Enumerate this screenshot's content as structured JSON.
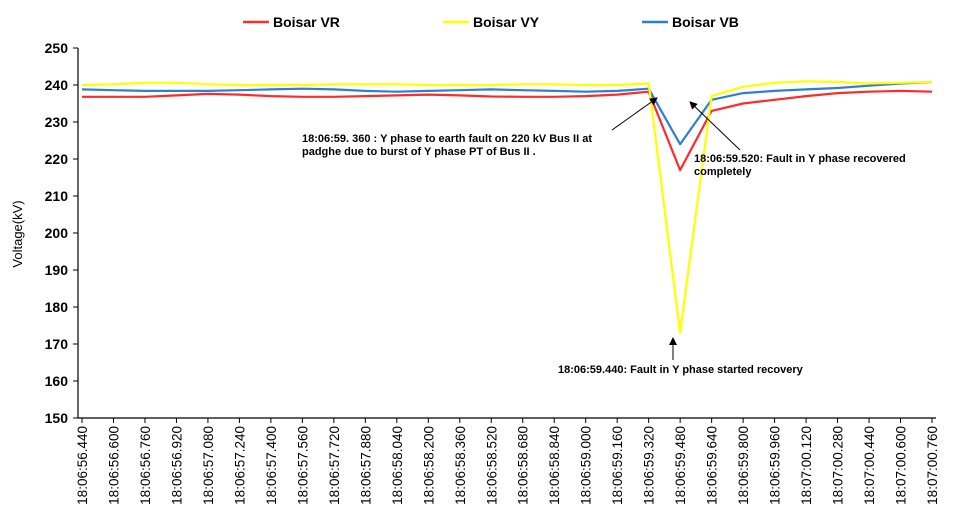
{
  "chart_data": {
    "type": "line",
    "title": "",
    "xlabel": "",
    "ylabel": "Voltage(kV)",
    "ylim": [
      150,
      250
    ],
    "yticks": [
      150,
      160,
      170,
      180,
      190,
      200,
      210,
      220,
      230,
      240,
      250
    ],
    "x": [
      "18:06:56.440",
      "18:06:56.600",
      "18:06:56.760",
      "18:06:56.920",
      "18:06:57.080",
      "18:06:57.240",
      "18:06:57.400",
      "18:06:57.560",
      "18:06:57.720",
      "18:06:57.880",
      "18:06:58.040",
      "18:06:58.200",
      "18:06:58.360",
      "18:06:58.520",
      "18:06:58.680",
      "18:06:58.840",
      "18:06:59.000",
      "18:06:59.160",
      "18:06:59.320",
      "18:06:59.480",
      "18:06:59.640",
      "18:06:59.800",
      "18:06:59.960",
      "18:07:00.120",
      "18:07:00.280",
      "18:07:00.440",
      "18:07:00.600",
      "18:07:00.760"
    ],
    "legend_position": "top",
    "grid": false,
    "series": [
      {
        "name": "Boisar VR",
        "color": "#ff2a2a",
        "values": [
          236.8,
          236.8,
          236.8,
          237.2,
          237.6,
          237.4,
          237.0,
          236.8,
          236.8,
          237.0,
          237.2,
          237.4,
          237.2,
          236.9,
          236.8,
          236.8,
          237.0,
          237.4,
          238.2,
          217.0,
          233.0,
          235.0,
          236.0,
          237.0,
          237.8,
          238.2,
          238.4,
          238.2
        ]
      },
      {
        "name": "Boisar VY",
        "color": "#ffff00",
        "values": [
          240.0,
          240.2,
          240.6,
          240.6,
          240.2,
          240.0,
          240.0,
          240.0,
          240.2,
          240.2,
          240.2,
          240.0,
          240.0,
          240.0,
          240.2,
          240.2,
          240.0,
          240.0,
          240.4,
          173.0,
          237.0,
          239.5,
          240.6,
          241.0,
          240.8,
          240.4,
          240.6,
          240.8
        ]
      },
      {
        "name": "Boisar VB",
        "color": "#2f7fd0",
        "values": [
          238.8,
          238.6,
          238.4,
          238.4,
          238.4,
          238.6,
          238.8,
          239.0,
          238.8,
          238.4,
          238.2,
          238.4,
          238.6,
          238.8,
          238.6,
          238.4,
          238.2,
          238.4,
          239.0,
          224.0,
          236.0,
          237.8,
          238.4,
          238.8,
          239.2,
          239.8,
          240.4,
          240.8
        ]
      }
    ],
    "annotations": [
      {
        "lines": [
          "18:06:59.  360  : Y phase  to earth fault on 220  kV  Bus II  at",
          "padghe due to burst of Y phase PT of Bus II ."
        ]
      },
      {
        "lines": [
          "18:06:59.520:  Fault in Y phase recovered",
          "completely"
        ]
      },
      {
        "lines": [
          "18:06:59.440:  Fault in Y phase started recovery"
        ]
      }
    ]
  }
}
